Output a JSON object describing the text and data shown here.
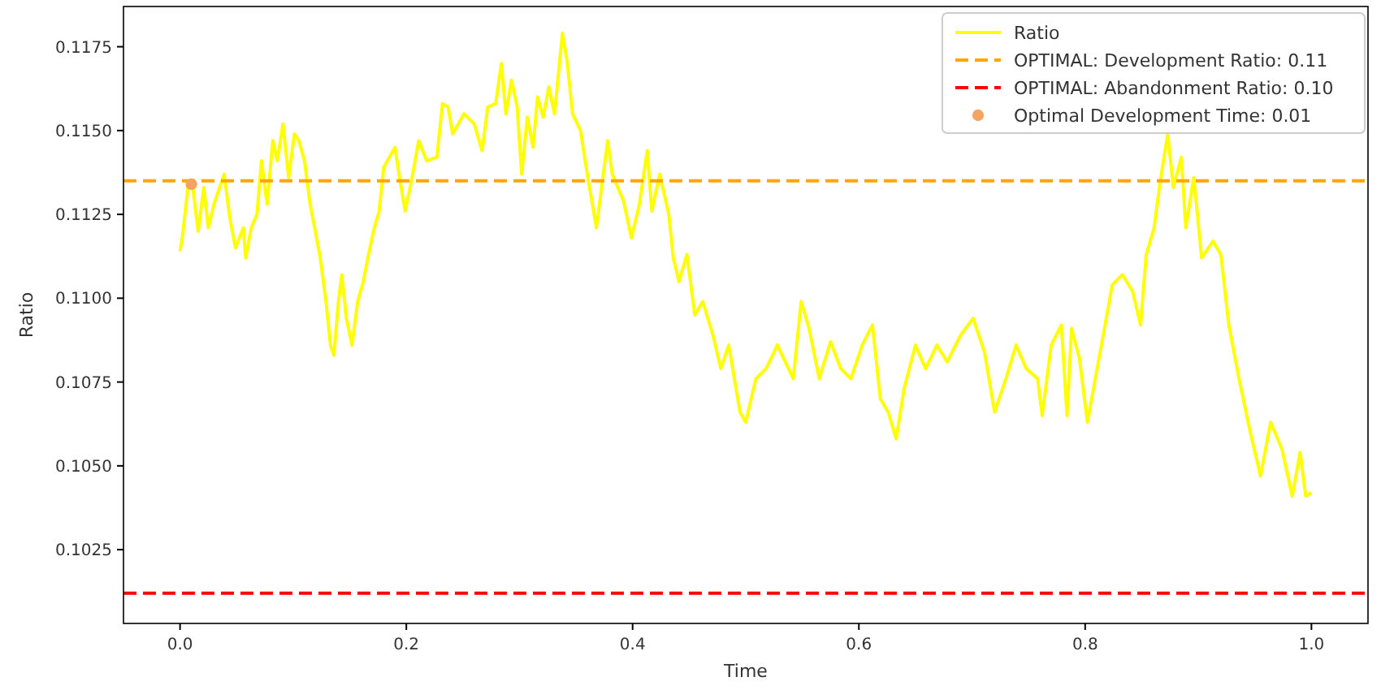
{
  "chart_data": {
    "type": "line",
    "xlabel": "Time",
    "ylabel": "Ratio",
    "xlim": [
      -0.05,
      1.05
    ],
    "ylim": [
      0.1003,
      0.1187
    ],
    "xticks": [
      {
        "value": 0,
        "label": "0.0"
      },
      {
        "value": 0.2,
        "label": "0.2"
      },
      {
        "value": 0.4,
        "label": "0.4"
      },
      {
        "value": 0.6,
        "label": "0.6"
      },
      {
        "value": 0.8,
        "label": "0.8"
      },
      {
        "value": 1,
        "label": "1.0"
      }
    ],
    "yticks": [
      {
        "value": 0.1025,
        "label": "0.1025"
      },
      {
        "value": 0.105,
        "label": "0.1050"
      },
      {
        "value": 0.1075,
        "label": "0.1075"
      },
      {
        "value": 0.11,
        "label": "0.1100"
      },
      {
        "value": 0.1125,
        "label": "0.1125"
      },
      {
        "value": 0.115,
        "label": "0.1150"
      },
      {
        "value": 0.1175,
        "label": "0.1175"
      }
    ],
    "legend": "top right",
    "grid": false,
    "series": [
      {
        "name": "Ratio",
        "color": "#ffff00",
        "x": [
          0,
          0.002,
          0.007,
          0.011,
          0.016,
          0.021,
          0.025,
          0.03,
          0.035,
          0.039,
          0.044,
          0.049,
          0.056,
          0.058,
          0.063,
          0.068,
          0.072,
          0.077,
          0.082,
          0.086,
          0.091,
          0.096,
          0.101,
          0.105,
          0.11,
          0.115,
          0.119,
          0.124,
          0.129,
          0.133,
          0.136,
          0.14,
          0.143,
          0.147,
          0.152,
          0.157,
          0.162,
          0.166,
          0.171,
          0.176,
          0.18,
          0.185,
          0.19,
          0.194,
          0.199,
          0.204,
          0.211,
          0.218,
          0.227,
          0.232,
          0.237,
          0.241,
          0.251,
          0.26,
          0.267,
          0.272,
          0.279,
          0.284,
          0.288,
          0.293,
          0.298,
          0.302,
          0.307,
          0.312,
          0.316,
          0.321,
          0.326,
          0.331,
          0.338,
          0.342,
          0.347,
          0.354,
          0.359,
          0.363,
          0.368,
          0.373,
          0.378,
          0.382,
          0.392,
          0.399,
          0.406,
          0.413,
          0.417,
          0.424,
          0.432,
          0.436,
          0.441,
          0.448,
          0.455,
          0.462,
          0.471,
          0.478,
          0.485,
          0.495,
          0.5,
          0.509,
          0.518,
          0.528,
          0.535,
          0.542,
          0.549,
          0.556,
          0.565,
          0.575,
          0.584,
          0.593,
          0.603,
          0.612,
          0.619,
          0.626,
          0.633,
          0.64,
          0.65,
          0.659,
          0.669,
          0.678,
          0.69,
          0.701,
          0.711,
          0.72,
          0.73,
          0.739,
          0.748,
          0.758,
          0.762,
          0.77,
          0.779,
          0.784,
          0.788,
          0.795,
          0.802,
          0.809,
          0.816,
          0.824,
          0.833,
          0.842,
          0.849,
          0.854,
          0.861,
          0.866,
          0.873,
          0.878,
          0.885,
          0.889,
          0.896,
          0.903,
          0.913,
          0.92,
          0.927,
          0.936,
          0.946,
          0.955,
          0.964,
          0.974,
          0.983,
          0.99,
          0.995,
          1.0
        ],
        "values": [
          0.1114,
          0.1118,
          0.1133,
          0.1134,
          0.112,
          0.1133,
          0.1121,
          0.1128,
          0.1133,
          0.1137,
          0.1124,
          0.1115,
          0.1121,
          0.1112,
          0.1121,
          0.1125,
          0.1141,
          0.1128,
          0.1147,
          0.1141,
          0.1152,
          0.1136,
          0.1149,
          0.1147,
          0.1141,
          0.1128,
          0.1121,
          0.1112,
          0.1099,
          0.1086,
          0.1083,
          0.1099,
          0.1107,
          0.1094,
          0.1086,
          0.1099,
          0.1105,
          0.1112,
          0.112,
          0.1126,
          0.1139,
          0.1142,
          0.1145,
          0.1136,
          0.1126,
          0.1134,
          0.1147,
          0.1141,
          0.1142,
          0.1158,
          0.1157,
          0.1149,
          0.1155,
          0.1152,
          0.1144,
          0.1157,
          0.1158,
          0.117,
          0.1155,
          0.1165,
          0.1157,
          0.1137,
          0.1154,
          0.1145,
          0.116,
          0.1154,
          0.1163,
          0.1155,
          0.1179,
          0.1171,
          0.1155,
          0.115,
          0.1139,
          0.1131,
          0.1121,
          0.1134,
          0.1147,
          0.1137,
          0.1129,
          0.1118,
          0.1128,
          0.1144,
          0.1126,
          0.1137,
          0.1125,
          0.1112,
          0.1105,
          0.1113,
          0.1095,
          0.1099,
          0.1089,
          0.1079,
          0.1086,
          0.1066,
          0.1063,
          0.1076,
          0.1079,
          0.1086,
          0.1081,
          0.1076,
          0.1099,
          0.1091,
          0.1076,
          0.1087,
          0.1079,
          0.1076,
          0.1086,
          0.1092,
          0.107,
          0.1066,
          0.1058,
          0.1073,
          0.1086,
          0.1079,
          0.1086,
          0.1081,
          0.1089,
          0.1094,
          0.1084,
          0.1066,
          0.1076,
          0.1086,
          0.1079,
          0.1076,
          0.1065,
          0.1086,
          0.1092,
          0.1065,
          0.1091,
          0.1082,
          0.1063,
          0.1076,
          0.1089,
          0.1104,
          0.1107,
          0.1102,
          0.1092,
          0.1113,
          0.1121,
          0.1134,
          0.1149,
          0.1133,
          0.1142,
          0.1121,
          0.1136,
          0.1112,
          0.1117,
          0.1113,
          0.1092,
          0.1076,
          0.106,
          0.1047,
          0.1063,
          0.1055,
          0.1041,
          0.1054,
          0.1041,
          0.1042
        ]
      },
      {
        "name": "Optimal Development Time: 0.01",
        "type": "scatter",
        "color": "#f4a460",
        "marker": "circle",
        "x": [
          0.01
        ],
        "values": [
          0.1134
        ]
      }
    ],
    "ref_lines": [
      {
        "axis": "y",
        "value": 0.1135,
        "label": "OPTIMAL: Development Ratio: 0.11",
        "color": "#ffa500",
        "line_style": "dashed"
      },
      {
        "axis": "y",
        "value": 0.1012,
        "label": "OPTIMAL: Abandonment Ratio: 0.10",
        "color": "#ff0000",
        "line_style": "dashed"
      }
    ]
  }
}
